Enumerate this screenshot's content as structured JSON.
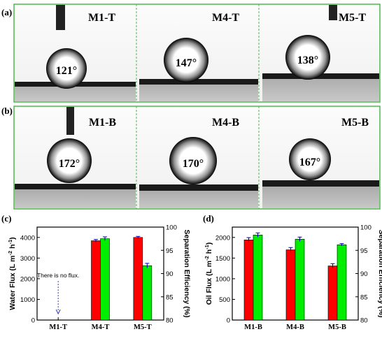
{
  "panel_a": {
    "label": "(a)",
    "images": [
      {
        "name": "M1-T",
        "angle": "121°",
        "angle_value": 121
      },
      {
        "name": "M4-T",
        "angle": "147°",
        "angle_value": 147
      },
      {
        "name": "M5-T",
        "angle": "138°",
        "angle_value": 138
      }
    ]
  },
  "panel_b": {
    "label": "(b)",
    "images": [
      {
        "name": "M1-B",
        "angle": "172°",
        "angle_value": 172
      },
      {
        "name": "M4-B",
        "angle": "170°",
        "angle_value": 170
      },
      {
        "name": "M5-B",
        "angle": "167°",
        "angle_value": 167
      }
    ]
  },
  "colors": {
    "frame": "#4db84d",
    "flux_bar": "#ff0000",
    "efficiency_bar": "#00ee00",
    "error_bar": "#0000aa",
    "arrow": "#3333cc"
  },
  "chart_data": [
    {
      "panel": "(c)",
      "type": "bar",
      "categories": [
        "M1-T",
        "M4-T",
        "M5-T"
      ],
      "ylabel": "Water Flux (L m⁻² h⁻¹)",
      "ylabel_parts": {
        "main": "Water Flux (L m",
        "exp1": "-2",
        "mid": " h",
        "exp2": "-1",
        "end": ")"
      },
      "y2label": "Separation Efficiency (%)",
      "ylim": [
        0,
        4500
      ],
      "yticks": [
        0,
        1000,
        2000,
        3000,
        4000
      ],
      "y2lim": [
        80,
        100
      ],
      "y2ticks": [
        80,
        85,
        90,
        95,
        100
      ],
      "series": [
        {
          "name": "Water Flux",
          "axis": "left",
          "values": [
            null,
            3840,
            4000
          ],
          "errors": [
            null,
            60,
            50
          ]
        },
        {
          "name": "Separation Efficiency",
          "axis": "right",
          "values": [
            null,
            97.5,
            91.7
          ],
          "errors": [
            null,
            0.4,
            0.5
          ]
        }
      ],
      "annotation": "There is no flux."
    },
    {
      "panel": "(d)",
      "type": "bar",
      "categories": [
        "M1-B",
        "M4-B",
        "M5-B"
      ],
      "ylabel": "Oil Flux (L m⁻² h⁻¹)",
      "ylabel_parts": {
        "main": "Oil Flux (L m",
        "exp1": "-2",
        "mid": " h",
        "exp2": "-1",
        "end": ")"
      },
      "y2label": "Separation Efficiency (%)",
      "ylim": [
        0,
        2250
      ],
      "yticks": [
        0,
        500,
        1000,
        1500,
        2000
      ],
      "y2lim": [
        80,
        100
      ],
      "y2ticks": [
        80,
        85,
        90,
        95,
        100
      ],
      "series": [
        {
          "name": "Oil Flux",
          "axis": "left",
          "values": [
            1940,
            1700,
            1310
          ],
          "errors": [
            55,
            55,
            55
          ]
        },
        {
          "name": "Separation Efficiency",
          "axis": "right",
          "values": [
            98.3,
            97.4,
            96.2
          ],
          "errors": [
            0.45,
            0.45,
            0.25
          ]
        }
      ]
    }
  ]
}
